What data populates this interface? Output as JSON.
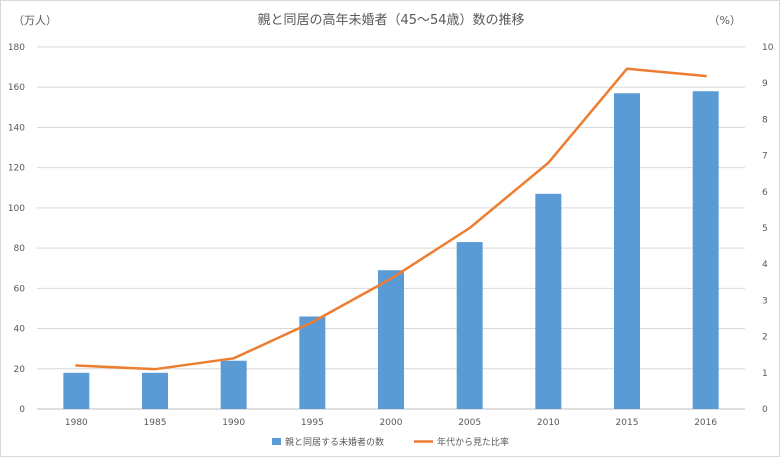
{
  "chart_data": {
    "type": "bar+line",
    "title": "親と同居の高年未婚者（45〜54歳）数の推移",
    "y_left_unit": "（万人）",
    "y_right_unit": "（%）",
    "categories": [
      "1980",
      "1985",
      "1990",
      "1995",
      "2000",
      "2005",
      "2010",
      "2015",
      "2016"
    ],
    "series": [
      {
        "name": "親と同居する未婚者の数",
        "type": "bar",
        "axis": "left",
        "color": "#5b9bd5",
        "values": [
          18,
          18,
          24,
          46,
          69,
          83,
          107,
          157,
          158
        ]
      },
      {
        "name": "年代から見た比率",
        "type": "line",
        "axis": "right",
        "color": "#ed7d31",
        "values": [
          1.2,
          1.1,
          1.4,
          2.4,
          3.6,
          5.0,
          6.8,
          9.4,
          9.2
        ]
      }
    ],
    "y_left_range": [
      0,
      180
    ],
    "y_left_ticks": [
      "0",
      "20",
      "40",
      "60",
      "80",
      "100",
      "120",
      "140",
      "160",
      "180"
    ],
    "y_right_range": [
      0,
      10
    ],
    "y_right_ticks": [
      "0",
      "1",
      "2",
      "3",
      "4",
      "5",
      "6",
      "7",
      "8",
      "9",
      "10"
    ],
    "grid": true,
    "legend_position": "bottom"
  }
}
